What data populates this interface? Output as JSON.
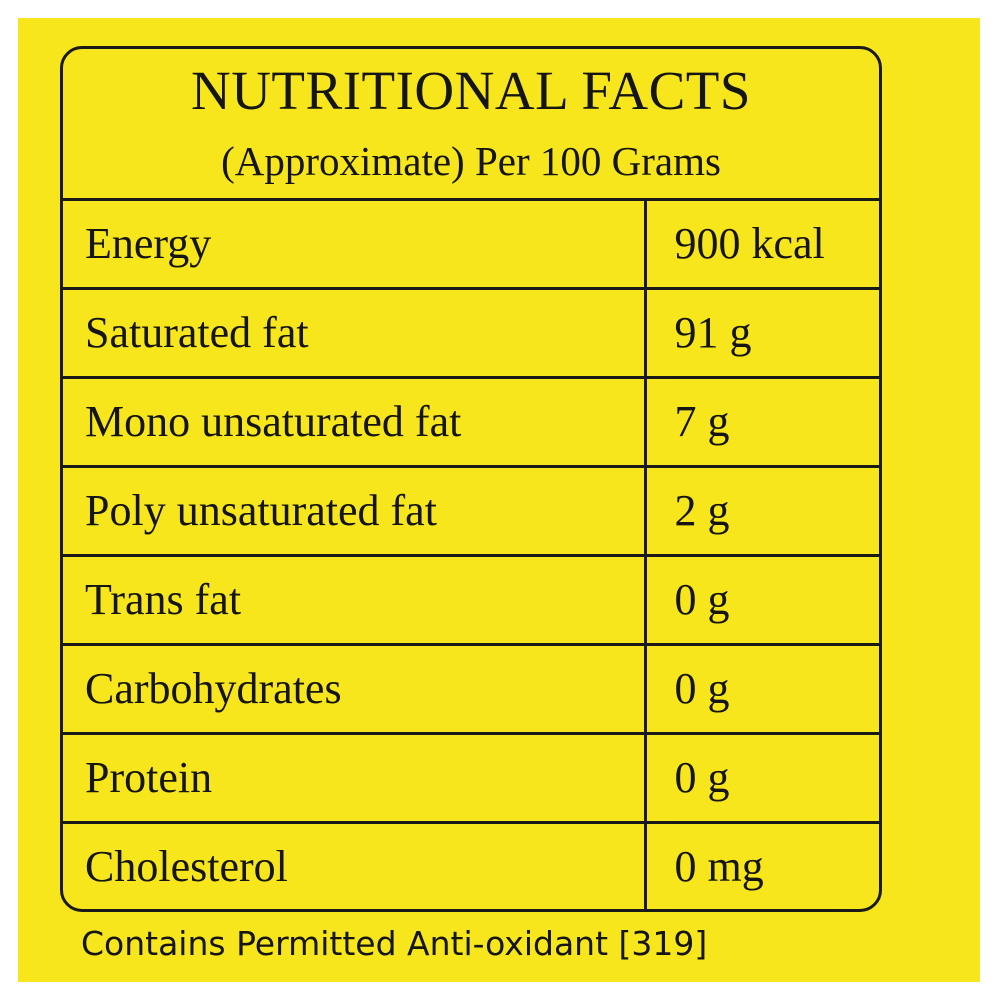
{
  "label": {
    "title": "NUTRITIONAL FACTS",
    "subtitle": "(Approximate) Per 100 Grams",
    "rows": [
      {
        "nutrient": "Energy",
        "amount": "900 kcal"
      },
      {
        "nutrient": "Saturated fat",
        "amount": "91 g"
      },
      {
        "nutrient": "Mono unsaturated fat",
        "amount": "7 g"
      },
      {
        "nutrient": "Poly unsaturated fat",
        "amount": "2 g"
      },
      {
        "nutrient": "Trans fat",
        "amount": "0 g"
      },
      {
        "nutrient": "Carbohydrates",
        "amount": "0 g"
      },
      {
        "nutrient": "Protein",
        "amount": "0 g"
      },
      {
        "nutrient": "Cholesterol",
        "amount": "0 mg"
      }
    ],
    "footer": "Contains Permitted Anti-oxidant [319]"
  },
  "colors": {
    "background": "#f7e61c",
    "ink": "#151515",
    "page": "#ffffff"
  }
}
